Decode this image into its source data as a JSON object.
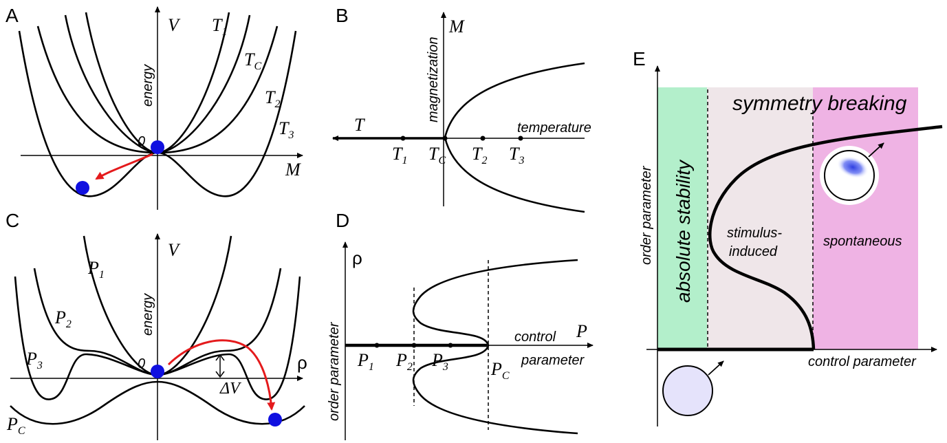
{
  "panelA": {
    "letter": "A",
    "V": "V",
    "M": "M",
    "energy": "energy",
    "zero": "0",
    "T1": "T",
    "T1sub": "1",
    "TC": "T",
    "TCsub": "C",
    "T2": "T",
    "T2sub": "2",
    "T3": "T",
    "T3sub": "3"
  },
  "panelB": {
    "letter": "B",
    "M": "M",
    "T": "T",
    "magnetization": "magnetization",
    "temperature": "temperature",
    "ticks": [
      {
        "main": "T",
        "sub": "1"
      },
      {
        "main": "T",
        "sub": "C"
      },
      {
        "main": "T",
        "sub": "2"
      },
      {
        "main": "T",
        "sub": "3"
      }
    ]
  },
  "panelC": {
    "letter": "C",
    "V": "V",
    "rho": "ρ",
    "energy": "energy",
    "zero": "0",
    "deltaV": "ΔV",
    "P1": "P",
    "P1sub": "1",
    "P2": "P",
    "P2sub": "2",
    "P3": "P",
    "P3sub": "3",
    "PC": "P",
    "PCsub": "C"
  },
  "panelD": {
    "letter": "D",
    "rho": "ρ",
    "P": "P",
    "order_parameter": "order parameter",
    "control": "control",
    "parameter": "parameter",
    "ticks": [
      {
        "main": "P",
        "sub": "1"
      },
      {
        "main": "P",
        "sub": "2"
      },
      {
        "main": "P",
        "sub": "3"
      },
      {
        "main": "P",
        "sub": "C"
      }
    ]
  },
  "panelE": {
    "letter": "E",
    "order_parameter": "order parameter",
    "control_parameter": "control parameter",
    "symmetry_breaking": "symmetry breaking",
    "absolute_stability": "absolute stability",
    "stimulus": "stimulus-",
    "induced": "induced",
    "spontaneous": "spontaneous",
    "colors": {
      "green": "#b3efcb",
      "grey": "#efe6e9",
      "pink": "#efb3e4",
      "blob": "#2f3fe0",
      "disc": "#e5e3fb"
    }
  },
  "colors": {
    "ball": "#1010e0",
    "arrow": "#e41a1c"
  }
}
